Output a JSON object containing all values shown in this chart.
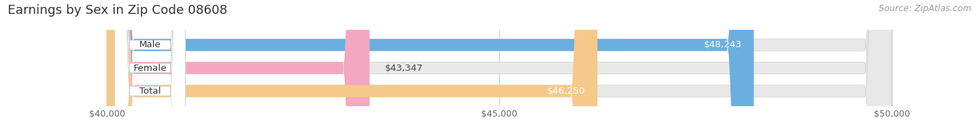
{
  "title": "Earnings by Sex in Zip Code 08608",
  "source_text": "Source: ZipAtlas.com",
  "categories": [
    "Male",
    "Female",
    "Total"
  ],
  "values": [
    48243,
    43347,
    46250
  ],
  "bar_colors": [
    "#6aafe0",
    "#f4a7c0",
    "#f5c98a"
  ],
  "value_labels": [
    "$48,243",
    "$43,347",
    "$46,250"
  ],
  "label_inside": [
    true,
    false,
    true
  ],
  "xmin": 40000,
  "xmax": 50000,
  "xticks": [
    40000,
    45000,
    50000
  ],
  "xtick_labels": [
    "$40,000",
    "$45,000",
    "$50,000"
  ],
  "background_color": "#ffffff",
  "track_color": "#e8e8e8",
  "bar_height": 0.52,
  "title_fontsize": 13,
  "source_fontsize": 9,
  "label_fontsize": 9.5,
  "tick_fontsize": 9,
  "category_fontsize": 9.5
}
